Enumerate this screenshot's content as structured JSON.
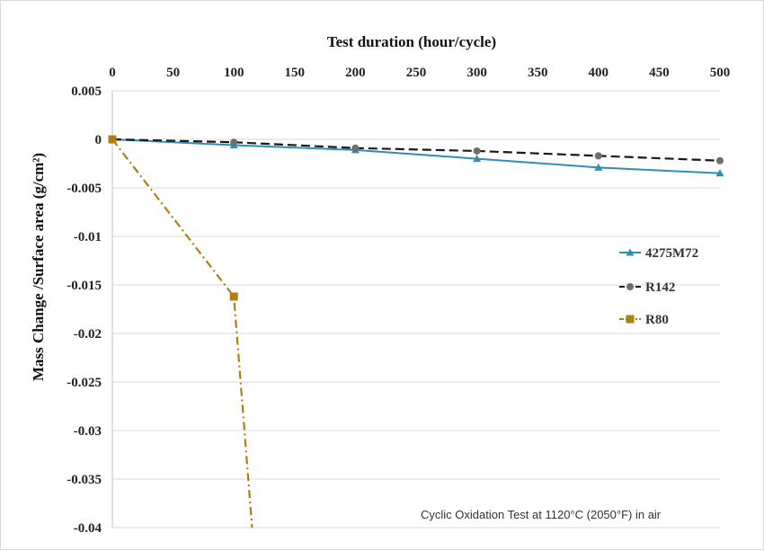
{
  "chart_data": {
    "type": "line",
    "x_title": "Test duration (hour/cycle)",
    "y_title": "Mass Change /Surface area  (g/cm²)",
    "x_ticks": [
      "0",
      "50",
      "100",
      "150",
      "200",
      "250",
      "300",
      "350",
      "400",
      "450",
      "500"
    ],
    "y_ticks": [
      "0.005",
      "0",
      "-0.005",
      "-0.01",
      "-0.015",
      "-0.02",
      "-0.025",
      "-0.03",
      "-0.035",
      "-0.04"
    ],
    "xlim": [
      0,
      500
    ],
    "ylim": [
      -0.04,
      0.005
    ],
    "x_axis_position": "top",
    "grid": "horizontal",
    "legend_position": "right",
    "annotation": "Cyclic Oxidation Test at 1120°C (2050°F) in air",
    "series": [
      {
        "name": "4275M72",
        "color": "#2e8fb0",
        "marker": "triangle",
        "dash": "solid",
        "x": [
          0,
          100,
          200,
          300,
          400,
          500
        ],
        "y": [
          0,
          -0.0006,
          -0.0011,
          -0.002,
          -0.0029,
          -0.0035
        ]
      },
      {
        "name": "R142",
        "color": "#1a1a1a",
        "marker": "circle",
        "dash": "dashed",
        "x": [
          0,
          100,
          200,
          300,
          400,
          500
        ],
        "y": [
          0,
          -0.0003,
          -0.0009,
          -0.0012,
          -0.0017,
          -0.0022
        ]
      },
      {
        "name": "R80",
        "color": "#b07f12",
        "marker": "square",
        "dash": "dashdot",
        "x": [
          0,
          100,
          115
        ],
        "y": [
          0,
          -0.0162,
          -0.04
        ]
      }
    ]
  }
}
